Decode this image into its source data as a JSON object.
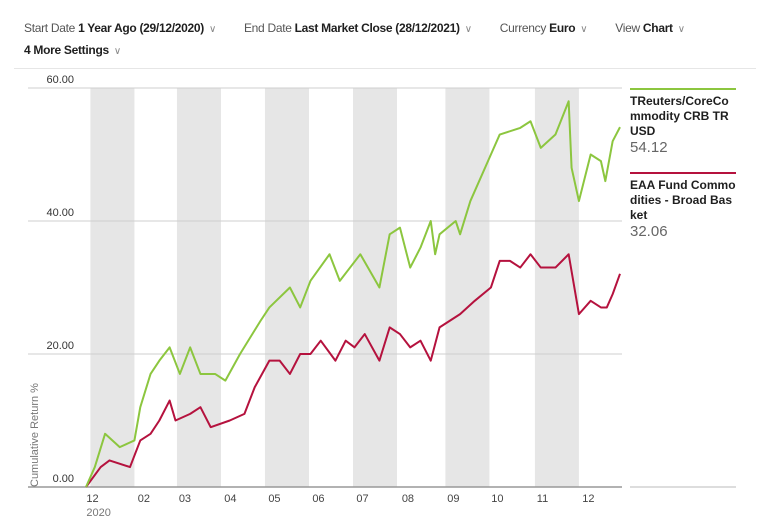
{
  "settings": [
    {
      "label": "Start Date",
      "value": "1 Year Ago (29/12/2020)"
    },
    {
      "label": "End Date",
      "value": "Last Market Close (28/12/2021)"
    },
    {
      "label": "Currency",
      "value": "Euro"
    },
    {
      "label": "View",
      "value": "Chart"
    }
  ],
  "more_settings": "4 More Settings",
  "chevron": "∨",
  "chart_data": {
    "type": "line",
    "ylabel": "Cumulative Return %",
    "ylim": [
      0,
      60
    ],
    "yticks": [
      "0.00",
      "20.00",
      "40.00",
      "60.00"
    ],
    "ytick_values": [
      0,
      20,
      40,
      60
    ],
    "xlim_days": [
      0,
      364
    ],
    "xticks": [
      {
        "label": "12",
        "day": 3
      },
      {
        "label": "02",
        "day": 38
      },
      {
        "label": "03",
        "day": 66
      },
      {
        "label": "04",
        "day": 97
      },
      {
        "label": "05",
        "day": 127
      },
      {
        "label": "06",
        "day": 157
      },
      {
        "label": "07",
        "day": 187
      },
      {
        "label": "08",
        "day": 218
      },
      {
        "label": "09",
        "day": 249
      },
      {
        "label": "10",
        "day": 279
      },
      {
        "label": "11",
        "day": 310
      },
      {
        "label": "12",
        "day": 341
      }
    ],
    "year_label": "2020",
    "shaded_bands_days": [
      [
        3,
        33
      ],
      [
        62,
        92
      ],
      [
        122,
        152
      ],
      [
        182,
        212
      ],
      [
        245,
        275
      ],
      [
        306,
        336
      ]
    ],
    "series": [
      {
        "name": "TReuters/CoreCommodity CRB TR USD",
        "color": "#8cc63f",
        "last": "54.12",
        "x": [
          0,
          6,
          13,
          23,
          33,
          37,
          44,
          50,
          57,
          64,
          71,
          78,
          88,
          95,
          105,
          119,
          125,
          139,
          146,
          153,
          166,
          173,
          180,
          187,
          200,
          207,
          214,
          221,
          228,
          235,
          238,
          241,
          252,
          255,
          262,
          276,
          282,
          296,
          303,
          310,
          320,
          329,
          331,
          336,
          344,
          351,
          354,
          359,
          364
        ],
        "y": [
          0,
          3,
          8,
          6,
          7,
          12,
          17,
          19,
          21,
          17,
          21,
          17,
          17,
          16,
          20,
          25,
          27,
          30,
          27,
          31,
          35,
          31,
          33,
          35,
          30,
          38,
          39,
          33,
          36,
          40,
          35,
          38,
          40,
          38,
          43,
          50,
          53,
          54,
          55,
          51,
          53,
          58,
          48,
          43,
          50,
          49,
          46,
          52,
          54.12
        ]
      },
      {
        "name": "EAA Fund Commodities - Broad Basket",
        "color": "#b5123e",
        "last": "32.06",
        "x": [
          0,
          10,
          16,
          30,
          37,
          44,
          50,
          57,
          61,
          71,
          78,
          85,
          98,
          108,
          115,
          125,
          132,
          139,
          146,
          153,
          160,
          170,
          177,
          183,
          190,
          200,
          207,
          214,
          221,
          228,
          235,
          241,
          255,
          265,
          276,
          282,
          289,
          296,
          303,
          310,
          320,
          329,
          336,
          344,
          351,
          355,
          359,
          364
        ],
        "y": [
          0,
          3,
          4,
          3,
          7,
          8,
          10,
          13,
          10,
          11,
          12,
          9,
          10,
          11,
          15,
          19,
          19,
          17,
          20,
          20,
          22,
          19,
          22,
          21,
          23,
          19,
          24,
          23,
          21,
          22,
          19,
          24,
          26,
          28,
          30,
          34,
          34,
          33,
          35,
          33,
          33,
          35,
          26,
          28,
          27,
          27,
          29,
          32.06
        ]
      }
    ]
  }
}
